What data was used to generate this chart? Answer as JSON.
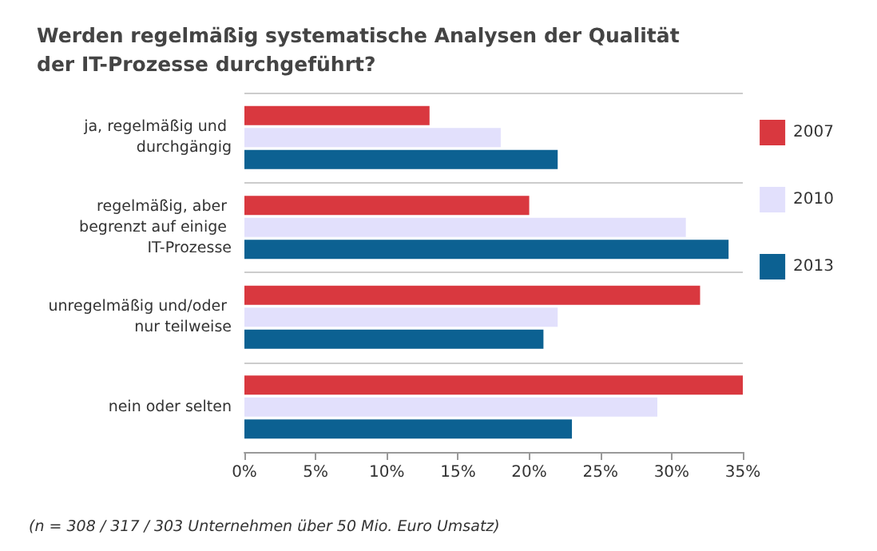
{
  "chart_data": {
    "type": "bar",
    "orientation": "horizontal",
    "title": "Werden regelmäßig systematische Analysen der Qualität der IT-Prozesse durchgeführt?",
    "categories": [
      "ja, regelmäßig und durchgängig",
      "regelmäßig, aber begrenzt auf einige IT-Prozesse",
      "unregelmäßig und/oder nur teilweise",
      "nein oder selten"
    ],
    "series": [
      {
        "name": "2007",
        "color": "#d9383f",
        "values": [
          13,
          20,
          32,
          35
        ]
      },
      {
        "name": "2010",
        "color": "#e2e0fc",
        "values": [
          18,
          31,
          22,
          29
        ]
      },
      {
        "name": "2013",
        "color": "#0c6192",
        "values": [
          22,
          34,
          21,
          23
        ]
      }
    ],
    "xlim": [
      0,
      35
    ],
    "xticks": [
      {
        "value": 0,
        "label": "0%"
      },
      {
        "value": 5,
        "label": "5%"
      },
      {
        "value": 10,
        "label": "10%"
      },
      {
        "value": 15,
        "label": "15%"
      },
      {
        "value": 20,
        "label": "20%"
      },
      {
        "value": 25,
        "label": "25%"
      },
      {
        "value": 30,
        "label": "30%"
      },
      {
        "value": 35,
        "label": "35%"
      }
    ],
    "grid": "y",
    "legend": "right",
    "annotations": [
      "(n = 308 / 317 / 303 Unternehmen über 50 Mio. Euro Umsatz)"
    ]
  }
}
